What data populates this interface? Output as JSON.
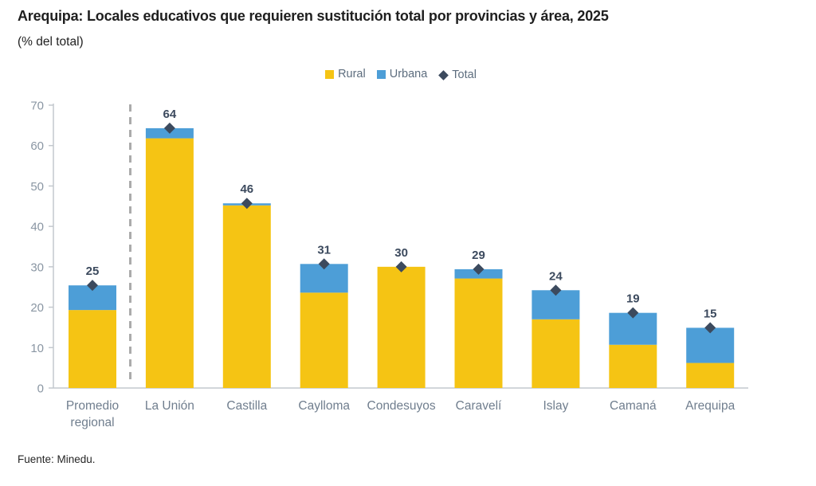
{
  "title": "Arequipa: Locales educativos que requieren sustitución total por provincias y área, 2025",
  "subtitle": "(% del total)",
  "source": "Fuente: Minedu.",
  "colors": {
    "rural": "#F5C414",
    "urbana": "#4D9ED7",
    "total": "#3C4A5E",
    "axis": "#C3C8CE",
    "separator": "#ABABAB"
  },
  "legend": [
    {
      "label": "Rural",
      "marker": "square",
      "color": "#F5C414"
    },
    {
      "label": "Urbana",
      "marker": "square",
      "color": "#4D9ED7"
    },
    {
      "label": "Total",
      "marker": "diamond",
      "color": "#3C4A5E"
    }
  ],
  "chart_data": {
    "type": "bar",
    "stacked": true,
    "title": "Arequipa: Locales educativos que requieren sustitución total por provincias y área, 2025",
    "subtitle": "(% del total)",
    "xlabel": "",
    "ylabel": "",
    "ylim": [
      0,
      70
    ],
    "yticks": [
      0,
      10,
      20,
      30,
      40,
      50,
      60,
      70
    ],
    "grid": false,
    "legend_position": "top",
    "categories": [
      "Promedio regional",
      "La Unión",
      "Castilla",
      "Caylloma",
      "Condesuyos",
      "Caravelí",
      "Islay",
      "Camaná",
      "Arequipa"
    ],
    "series": [
      {
        "name": "Rural",
        "color": "#F5C414",
        "values": [
          19.3,
          61.8,
          45.2,
          23.6,
          30.0,
          27.1,
          17.0,
          10.7,
          6.2
        ]
      },
      {
        "name": "Urbana",
        "color": "#4D9ED7",
        "values": [
          6.1,
          2.5,
          0.5,
          7.1,
          0.0,
          2.3,
          7.2,
          7.9,
          8.7
        ]
      }
    ],
    "total_markers": {
      "name": "Total",
      "shape": "diamond",
      "color": "#3C4A5E",
      "values": [
        25.4,
        64.3,
        45.7,
        30.7,
        30.0,
        29.4,
        24.2,
        18.6,
        14.9
      ]
    },
    "total_labels": [
      "25",
      "64",
      "46",
      "31",
      "30",
      "29",
      "24",
      "19",
      "15"
    ],
    "separator_after_category_index": 0
  }
}
